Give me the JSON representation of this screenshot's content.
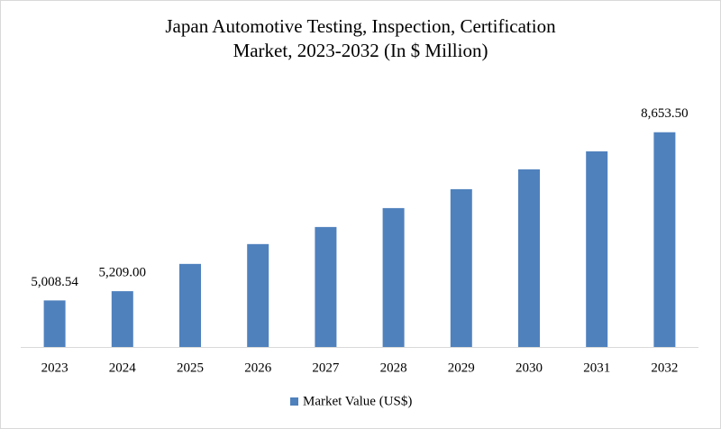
{
  "chart_data": {
    "type": "bar",
    "title": [
      "Japan Automotive Testing, Inspection, Certification",
      "Market, 2023-2032 (In $ Million)"
    ],
    "categories": [
      "2023",
      "2024",
      "2025",
      "2026",
      "2027",
      "2028",
      "2029",
      "2030",
      "2031",
      "2032"
    ],
    "series": [
      {
        "name": "Market Value (US$)",
        "color": "#4f81bd",
        "values": [
          5008.54,
          5209.0,
          5800,
          6230,
          6600,
          7010,
          7420,
          7850,
          8240,
          8653.5
        ],
        "value_labels": [
          "5,008.54",
          "5,209.00",
          null,
          null,
          null,
          null,
          null,
          null,
          null,
          "8,653.50"
        ]
      }
    ],
    "ylim": [
      4000,
      9000
    ],
    "legend": "bottom"
  }
}
